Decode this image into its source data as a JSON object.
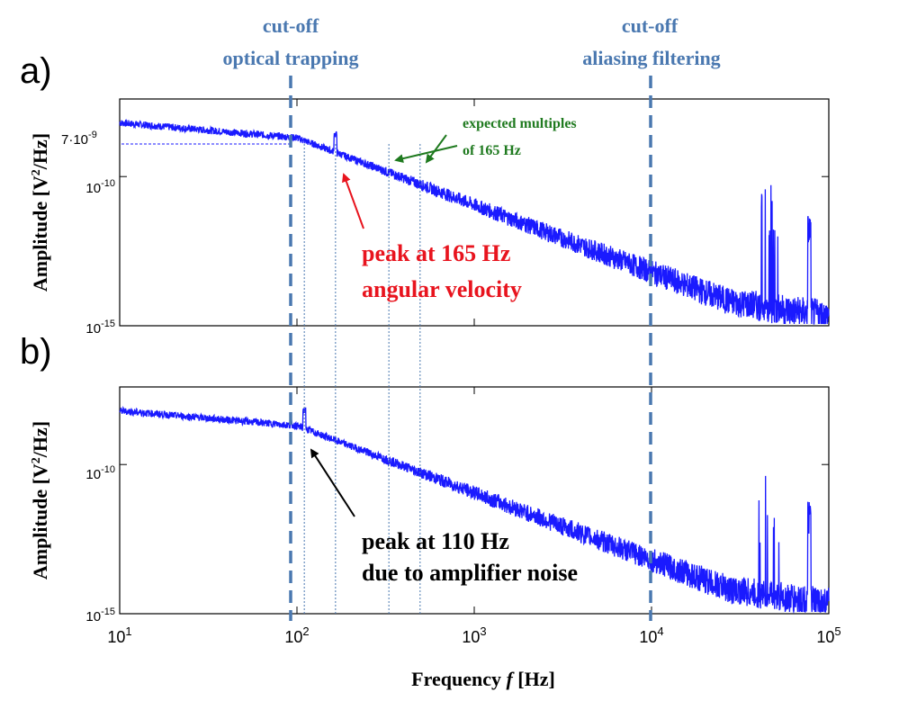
{
  "panel_labels": {
    "a": "a)",
    "b": "b)"
  },
  "cutoff_labels": {
    "left_line1": "cut-off",
    "left_line2": "optical trapping",
    "right_line1": "cut-off",
    "right_line2": "aliasing filtering"
  },
  "annotations": {
    "expected_line1": "expected multiples",
    "expected_line2": "of 165 Hz",
    "peak_a_line1": "peak at 165 Hz",
    "peak_a_line2": "angular velocity",
    "peak_b_line1": "peak at 110 Hz",
    "peak_b_line2": "due to amplifier noise",
    "ref_level": "7·10",
    "ref_level_exp": "-9"
  },
  "axis": {
    "ylabel_main": "Amplitude [V",
    "ylabel_sup": "2",
    "ylabel_end": "/Hz]",
    "xlabel_main": "Frequency ",
    "xlabel_italic": "f",
    "xlabel_end": " [Hz]"
  },
  "y_ticks": [
    {
      "base": "10",
      "exp": "-10"
    },
    {
      "base": "10",
      "exp": "-15"
    }
  ],
  "x_ticks": [
    {
      "base": "10",
      "exp": "1"
    },
    {
      "base": "10",
      "exp": "2"
    },
    {
      "base": "10",
      "exp": "3"
    },
    {
      "base": "10",
      "exp": "4"
    },
    {
      "base": "10",
      "exp": "5"
    }
  ],
  "colors": {
    "trace": "#1a1aff",
    "cutoff": "#4a78b0",
    "annotation_red": "#e8141e",
    "annotation_green": "#1f7a1f",
    "text": "#000000"
  },
  "spectrum": {
    "xlim_log10": [
      1,
      5
    ],
    "ylim_log10": [
      -15,
      -7.4
    ],
    "cutoff_frequencies_hz": [
      90,
      10000
    ],
    "multiple_frequencies_hz": [
      110,
      165,
      330,
      495
    ],
    "panel_a_peak_hz": 165,
    "panel_b_peak_hz": 110
  }
}
